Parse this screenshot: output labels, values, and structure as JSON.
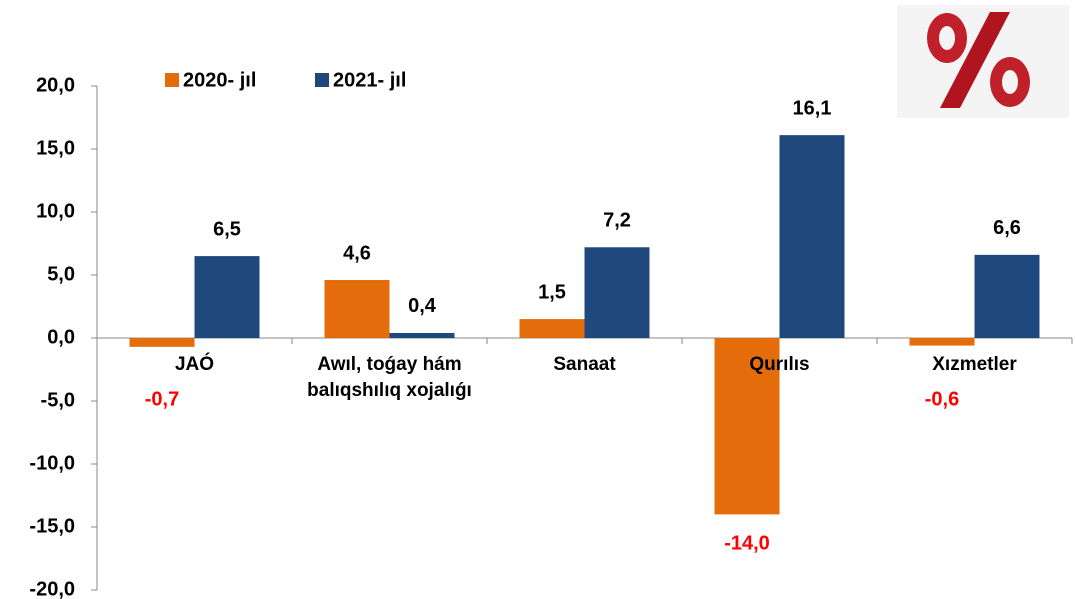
{
  "chart_data": {
    "type": "bar",
    "categories": [
      "JAÓ",
      "Awıl, toǵay hám balıqshılıq xojalıǵı",
      "Sanaat",
      "Qurılıs",
      "Xızmetler"
    ],
    "series": [
      {
        "name": "2020- jıl",
        "color": "#e46c0a",
        "values": [
          -0.7,
          4.6,
          1.5,
          -14.0,
          -0.6
        ],
        "value_labels": [
          "-0,7",
          "4,6",
          "1,5",
          "-14,0",
          "-0,6"
        ]
      },
      {
        "name": "2021- jıl",
        "color": "#1f497d",
        "values": [
          6.5,
          0.4,
          7.2,
          16.1,
          6.6
        ],
        "value_labels": [
          "6,5",
          "0,4",
          "7,2",
          "16,1",
          "6,6"
        ]
      }
    ],
    "ylim": [
      -20,
      20
    ],
    "yticks": [
      {
        "value": -20,
        "label": "-20,0"
      },
      {
        "value": -15,
        "label": "-15,0"
      },
      {
        "value": -10,
        "label": "-10,0"
      },
      {
        "value": -5,
        "label": "-5,0"
      },
      {
        "value": 0,
        "label": "0,0"
      },
      {
        "value": 5,
        "label": "5,0"
      },
      {
        "value": 10,
        "label": "10,0"
      },
      {
        "value": 15,
        "label": "15,0"
      },
      {
        "value": 20,
        "label": "20,0"
      }
    ],
    "label_color": "#000000",
    "negative_label_color": "#ff0000"
  }
}
